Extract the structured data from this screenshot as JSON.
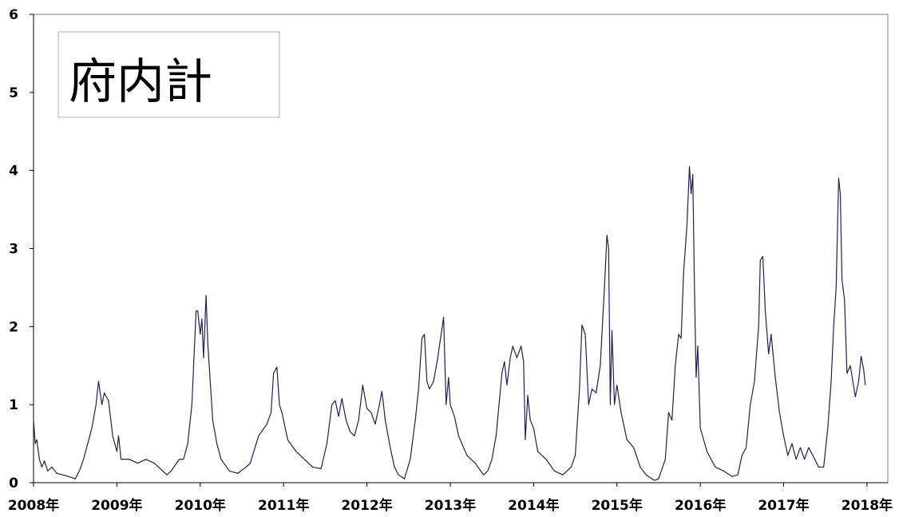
{
  "chart_data": {
    "type": "line",
    "x": [
      2008.0,
      2008.02,
      2008.04,
      2008.07,
      2008.1,
      2008.13,
      2008.17,
      2008.22,
      2008.28,
      2008.35,
      2008.42,
      2008.5,
      2008.55,
      2008.6,
      2008.65,
      2008.7,
      2008.75,
      2008.78,
      2008.82,
      2008.85,
      2008.9,
      2008.95,
      2009.0,
      2009.02,
      2009.05,
      2009.15,
      2009.25,
      2009.35,
      2009.45,
      2009.55,
      2009.6,
      2009.65,
      2009.75,
      2009.8,
      2009.85,
      2009.9,
      2009.95,
      2009.97,
      2010.0,
      2010.02,
      2010.04,
      2010.07,
      2010.09,
      2010.12,
      2010.15,
      2010.2,
      2010.25,
      2010.35,
      2010.45,
      2010.55,
      2010.6,
      2010.7,
      2010.8,
      2010.85,
      2010.88,
      2010.92,
      2010.95,
      2010.98,
      2011.05,
      2011.15,
      2011.25,
      2011.35,
      2011.45,
      2011.52,
      2011.58,
      2011.62,
      2011.66,
      2011.7,
      2011.75,
      2011.8,
      2011.85,
      2011.9,
      2011.95,
      2012.0,
      2012.05,
      2012.1,
      2012.15,
      2012.18,
      2012.22,
      2012.28,
      2012.33,
      2012.38,
      2012.45,
      2012.52,
      2012.58,
      2012.62,
      2012.66,
      2012.69,
      2012.72,
      2012.75,
      2012.8,
      2012.85,
      2012.92,
      2012.95,
      2012.98,
      2013.0,
      2013.05,
      2013.1,
      2013.2,
      2013.3,
      2013.4,
      2013.45,
      2013.5,
      2013.55,
      2013.62,
      2013.65,
      2013.68,
      2013.72,
      2013.75,
      2013.8,
      2013.85,
      2013.88,
      2013.9,
      2013.93,
      2013.96,
      2014.0,
      2014.05,
      2014.15,
      2014.25,
      2014.35,
      2014.45,
      2014.5,
      2014.55,
      2014.58,
      2014.62,
      2014.66,
      2014.7,
      2014.75,
      2014.8,
      2014.85,
      2014.88,
      2014.9,
      2014.92,
      2014.94,
      2014.97,
      2015.0,
      2015.05,
      2015.12,
      2015.2,
      2015.28,
      2015.35,
      2015.45,
      2015.5,
      2015.58,
      2015.62,
      2015.66,
      2015.7,
      2015.74,
      2015.77,
      2015.8,
      2015.84,
      2015.87,
      2015.89,
      2015.91,
      2015.93,
      2015.95,
      2015.97,
      2016.0,
      2016.08,
      2016.18,
      2016.28,
      2016.38,
      2016.45,
      2016.5,
      2016.55,
      2016.6,
      2016.65,
      2016.7,
      2016.72,
      2016.75,
      2016.78,
      2016.82,
      2016.85,
      2016.9,
      2016.95,
      2017.0,
      2017.05,
      2017.1,
      2017.15,
      2017.2,
      2017.25,
      2017.3,
      2017.35,
      2017.42,
      2017.48,
      2017.53,
      2017.57,
      2017.6,
      2017.63,
      2017.66,
      2017.68,
      2017.7,
      2017.73,
      2017.76,
      2017.8,
      2017.83,
      2017.86,
      2017.9,
      2017.93,
      2017.96,
      2017.98
    ],
    "series": [
      {
        "name": "府内計",
        "color": "#1f1f5c",
        "values": [
          0.8,
          0.5,
          0.55,
          0.3,
          0.2,
          0.28,
          0.15,
          0.2,
          0.12,
          0.1,
          0.08,
          0.05,
          0.15,
          0.3,
          0.5,
          0.7,
          1.0,
          1.3,
          1.0,
          1.15,
          1.05,
          0.6,
          0.4,
          0.6,
          0.3,
          0.3,
          0.25,
          0.3,
          0.25,
          0.15,
          0.1,
          0.15,
          0.3,
          0.3,
          0.5,
          1.0,
          2.2,
          2.2,
          1.9,
          2.1,
          1.6,
          2.4,
          1.8,
          1.3,
          0.8,
          0.5,
          0.3,
          0.15,
          0.12,
          0.2,
          0.25,
          0.6,
          0.75,
          0.9,
          1.4,
          1.48,
          1.0,
          0.9,
          0.55,
          0.4,
          0.3,
          0.2,
          0.18,
          0.5,
          1.0,
          1.05,
          0.85,
          1.08,
          0.8,
          0.65,
          0.6,
          0.8,
          1.25,
          0.95,
          0.9,
          0.75,
          1.0,
          1.17,
          0.8,
          0.45,
          0.2,
          0.1,
          0.05,
          0.3,
          0.8,
          1.2,
          1.85,
          1.9,
          1.3,
          1.2,
          1.3,
          1.6,
          2.12,
          1.0,
          1.35,
          1.0,
          0.85,
          0.6,
          0.35,
          0.25,
          0.1,
          0.15,
          0.3,
          0.6,
          1.4,
          1.55,
          1.25,
          1.6,
          1.75,
          1.6,
          1.75,
          1.55,
          0.55,
          1.12,
          0.8,
          0.7,
          0.4,
          0.3,
          0.15,
          0.1,
          0.2,
          0.35,
          1.2,
          2.02,
          1.9,
          1.0,
          1.2,
          1.15,
          1.5,
          2.5,
          3.17,
          3.0,
          1.0,
          1.95,
          1.0,
          1.25,
          0.9,
          0.55,
          0.45,
          0.2,
          0.1,
          0.03,
          0.05,
          0.3,
          0.9,
          0.8,
          1.5,
          1.9,
          1.85,
          2.7,
          3.3,
          4.05,
          3.7,
          3.95,
          2.5,
          1.35,
          1.75,
          0.7,
          0.4,
          0.2,
          0.15,
          0.08,
          0.1,
          0.35,
          0.45,
          1.0,
          1.3,
          2.0,
          2.85,
          2.9,
          2.2,
          1.65,
          1.9,
          1.35,
          0.9,
          0.6,
          0.35,
          0.5,
          0.3,
          0.45,
          0.3,
          0.45,
          0.35,
          0.2,
          0.2,
          0.7,
          1.3,
          2.0,
          2.5,
          3.9,
          3.7,
          2.6,
          2.35,
          1.4,
          1.5,
          1.3,
          1.1,
          1.3,
          1.62,
          1.45,
          1.25
        ]
      }
    ],
    "xlim": [
      2008,
      2018.25
    ],
    "xticks": [
      {
        "value": 2008,
        "label": "2008年"
      },
      {
        "value": 2009,
        "label": "2009年"
      },
      {
        "value": 2010,
        "label": "2010年"
      },
      {
        "value": 2011,
        "label": "2011年"
      },
      {
        "value": 2012,
        "label": "2012年"
      },
      {
        "value": 2013,
        "label": "2013年"
      },
      {
        "value": 2014,
        "label": "2014年"
      },
      {
        "value": 2015,
        "label": "2015年"
      },
      {
        "value": 2016,
        "label": "2016年"
      },
      {
        "value": 2017,
        "label": "2017年"
      },
      {
        "value": 2018,
        "label": "2018年"
      }
    ],
    "ylim": [
      0,
      6
    ],
    "yticks": [
      0,
      1,
      2,
      3,
      4,
      5,
      6
    ],
    "legend": "upper left"
  }
}
